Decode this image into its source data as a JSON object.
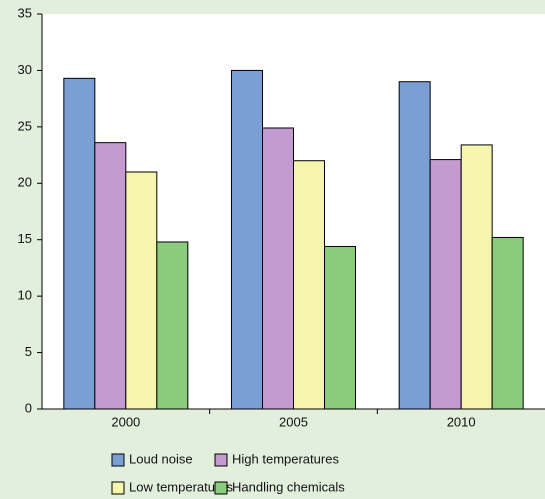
{
  "chart_data": {
    "type": "bar",
    "categories": [
      "2000",
      "2005",
      "2010"
    ],
    "series": [
      {
        "name": "Loud noise",
        "color": "#7b9fd4",
        "values": [
          29.3,
          30.0,
          29.0
        ]
      },
      {
        "name": "High temperatures",
        "color": "#c39bd0",
        "values": [
          23.6,
          24.9,
          22.1
        ]
      },
      {
        "name": "Low temperatures",
        "color": "#f5f5ad",
        "values": [
          21.0,
          22.0,
          23.4
        ]
      },
      {
        "name": "Handling chemicals",
        "color": "#8acc7c",
        "values": [
          14.8,
          14.4,
          15.2
        ]
      }
    ],
    "ylim": [
      0,
      35
    ],
    "yticks": [
      0,
      5,
      10,
      15,
      20,
      25,
      30,
      35
    ],
    "grid": false,
    "legend": "bottom"
  }
}
